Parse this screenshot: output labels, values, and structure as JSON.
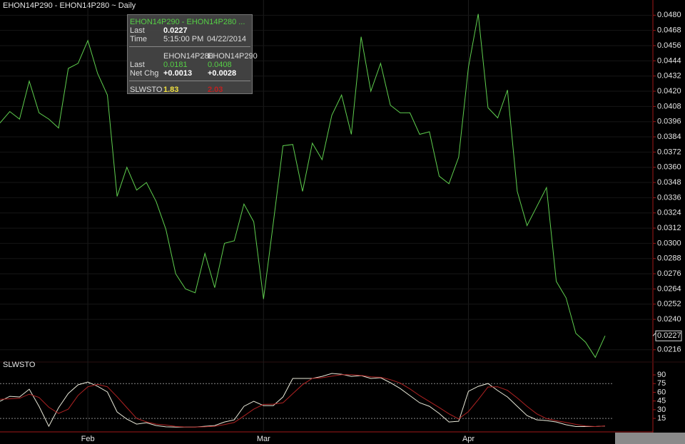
{
  "chart_data": [
    {
      "type": "line",
      "title": "EHON14P290 - EHON14P280 ~ Daily",
      "categories": [
        null,
        null,
        null,
        null,
        null,
        null,
        null,
        null,
        null,
        "Feb",
        null,
        null,
        null,
        null,
        null,
        null,
        null,
        null,
        null,
        null,
        null,
        null,
        null,
        null,
        null,
        null,
        null,
        "Mar",
        null,
        null,
        null,
        null,
        null,
        null,
        null,
        null,
        null,
        null,
        null,
        null,
        null,
        null,
        null,
        null,
        null,
        null,
        null,
        null,
        "Apr",
        null,
        null,
        null,
        null,
        null,
        null,
        null,
        null,
        null,
        null,
        null,
        null,
        null,
        null
      ],
      "series": [
        {
          "color": "#5fce4e",
          "values": [
            0.0395,
            0.0404,
            0.0398,
            0.0428,
            0.0403,
            0.0398,
            0.0391,
            0.0438,
            0.0442,
            0.046,
            0.0434,
            0.0417,
            0.0337,
            0.036,
            0.0342,
            0.0348,
            0.0333,
            0.0311,
            0.0276,
            0.0264,
            0.0261,
            0.0292,
            0.0265,
            0.03,
            0.0302,
            0.0331,
            0.0317,
            0.0256,
            0.0316,
            0.0377,
            0.0378,
            0.0341,
            0.0379,
            0.0366,
            0.0401,
            0.0417,
            0.0386,
            0.0463,
            0.042,
            0.0442,
            0.0409,
            0.0403,
            0.0403,
            0.0386,
            0.0388,
            0.0353,
            0.0347,
            0.0368,
            0.0439,
            0.0481,
            0.0407,
            0.0399,
            0.0421,
            0.0341,
            0.0314,
            0.0329,
            0.0344,
            0.027,
            0.0257,
            0.0229,
            0.0222,
            0.021,
            0.0227
          ]
        }
      ],
      "ylim": [
        0.0208,
        0.0492
      ],
      "yticks": [
        {
          "value": 0.048,
          "label": "0.0480"
        },
        0.0468,
        0.0456,
        0.0444,
        0.0432,
        {
          "value": 0.042,
          "label": "0.0420"
        },
        0.0408,
        0.0396,
        0.0384,
        0.0372,
        {
          "value": 0.036,
          "label": "0.0360"
        },
        0.0348,
        0.0336,
        0.0324,
        0.0312,
        {
          "value": 0.03,
          "label": "0.0300"
        },
        0.0288,
        0.0276,
        0.0264,
        0.0252,
        {
          "value": 0.024,
          "label": "0.0240"
        },
        0.0216
      ],
      "grid": true
    },
    {
      "type": "line",
      "title": "SLWSTO",
      "series": [
        {
          "color": "#e8e8d8",
          "values": [
            44.5,
            53.1,
            51.9,
            65.4,
            35.9,
            1.5,
            33.4,
            58,
            72.8,
            77.7,
            70.3,
            60.5,
            26.1,
            13.8,
            5.2,
            7.6,
            2.7,
            0.5,
            0,
            0,
            0,
            1.5,
            2.7,
            8.8,
            12.5,
            35.9,
            44.5,
            37.1,
            37.1,
            51.9,
            83.9,
            83.9,
            83.9,
            87.5,
            92.5,
            91.2,
            87.5,
            88.8,
            83.9,
            85.1,
            76.5,
            66.6,
            54.3,
            42,
            35.9,
            23.6,
            8.8,
            10,
            61.7,
            70.3,
            75.2,
            63,
            51.9,
            35.9,
            19.9,
            12.5,
            11.3,
            8.8,
            4,
            1,
            1,
            1,
            1.83
          ]
        },
        {
          "color": "#b02222",
          "values": [
            48,
            48.8,
            49.8,
            56.8,
            51.1,
            34.3,
            23.6,
            31,
            54.7,
            69.5,
            73.6,
            69.5,
            52.3,
            33.5,
            15,
            8.9,
            5.2,
            3.6,
            1.1,
            0.2,
            0,
            0.5,
            1.4,
            4.3,
            8,
            19.1,
            31,
            39.2,
            39.6,
            42,
            57.6,
            73.2,
            83.9,
            85.1,
            88,
            90.4,
            90.4,
            89.2,
            86.7,
            85.9,
            81.8,
            76.1,
            65.8,
            54.3,
            44.1,
            33.8,
            22.8,
            14.1,
            26.8,
            47.3,
            69.1,
            69.5,
            63.4,
            50.3,
            35.9,
            22.8,
            14.6,
            10.9,
            8,
            4.6,
            2,
            1,
            2.03
          ]
        }
      ],
      "ylim": [
        -8,
        100
      ],
      "yticks": [
        15,
        30,
        45,
        60,
        75,
        90
      ],
      "levels": [
        75,
        15
      ]
    }
  ],
  "tooltip": {
    "header": "EHON14P290 - EHON14P280 ...",
    "last_label": "Last",
    "last": "0.0227",
    "time_label": "Time",
    "time": "5:15:00 PM",
    "date": "04/22/2014",
    "columns": [
      "EHON14P280",
      "EHON14P290"
    ],
    "rows": [
      [
        "Last",
        "0.0181",
        "0.0408"
      ],
      [
        "Net Chg",
        "+0.0013",
        "+0.0028"
      ]
    ],
    "study": [
      "SLWSTO",
      "1.83",
      "2.03"
    ]
  }
}
